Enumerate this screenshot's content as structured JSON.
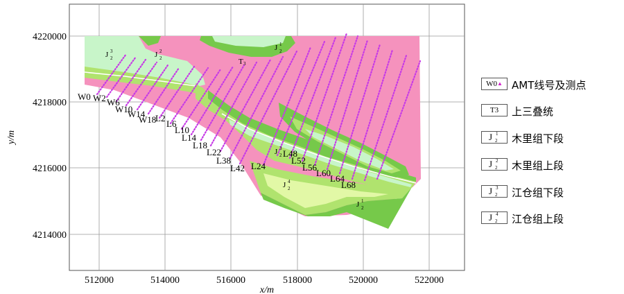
{
  "map": {
    "x_axis_label": "x/m",
    "y_axis_label": "y/m",
    "x_ticks": [
      "512000",
      "514000",
      "516000",
      "518000",
      "520000",
      "522000"
    ],
    "y_ticks": [
      "4220000",
      "4218000",
      "4216000",
      "4214000"
    ],
    "x_range": [
      511200,
      523200
    ],
    "y_range": [
      4212800,
      4221000
    ],
    "units": {
      "t3": "T",
      "t3_sub": "3",
      "j2_base": "J",
      "j2_sub": "2",
      "sup_1": "1",
      "sup_2": "2",
      "sup_3": "3",
      "sup_4": "4"
    },
    "line_labels": [
      "W0",
      "W2",
      "W6",
      "W10",
      "W14",
      "W18",
      "L2",
      "L6",
      "L10",
      "L14",
      "L18",
      "L22",
      "L38",
      "L42",
      "L24",
      "L48",
      "L52",
      "L56",
      "L60",
      "L64",
      "L68"
    ],
    "colors": {
      "pink": "#f592bd",
      "light_green": "#c8f5c9",
      "mid_green": "#b0e36e",
      "dark_green": "#76c94a",
      "pale_yellow_green": "#e2f8a6",
      "point_magenta": "#c63ae6"
    }
  },
  "legend": {
    "items": [
      {
        "symbol": "W0",
        "label": "AMT线号及测点"
      },
      {
        "symbol": "T3",
        "label": "上三叠统"
      },
      {
        "symbol_base": "J",
        "symbol_sup": "1",
        "symbol_sub": "2",
        "label": "木里组下段"
      },
      {
        "symbol_base": "J",
        "symbol_sup": "2",
        "symbol_sub": "2",
        "label": "木里组上段"
      },
      {
        "symbol_base": "J",
        "symbol_sup": "3",
        "symbol_sub": "2",
        "label": "江仓组下段"
      },
      {
        "symbol_base": "J",
        "symbol_sup": "4",
        "symbol_sub": "2",
        "label": "江仓组上段"
      }
    ]
  }
}
